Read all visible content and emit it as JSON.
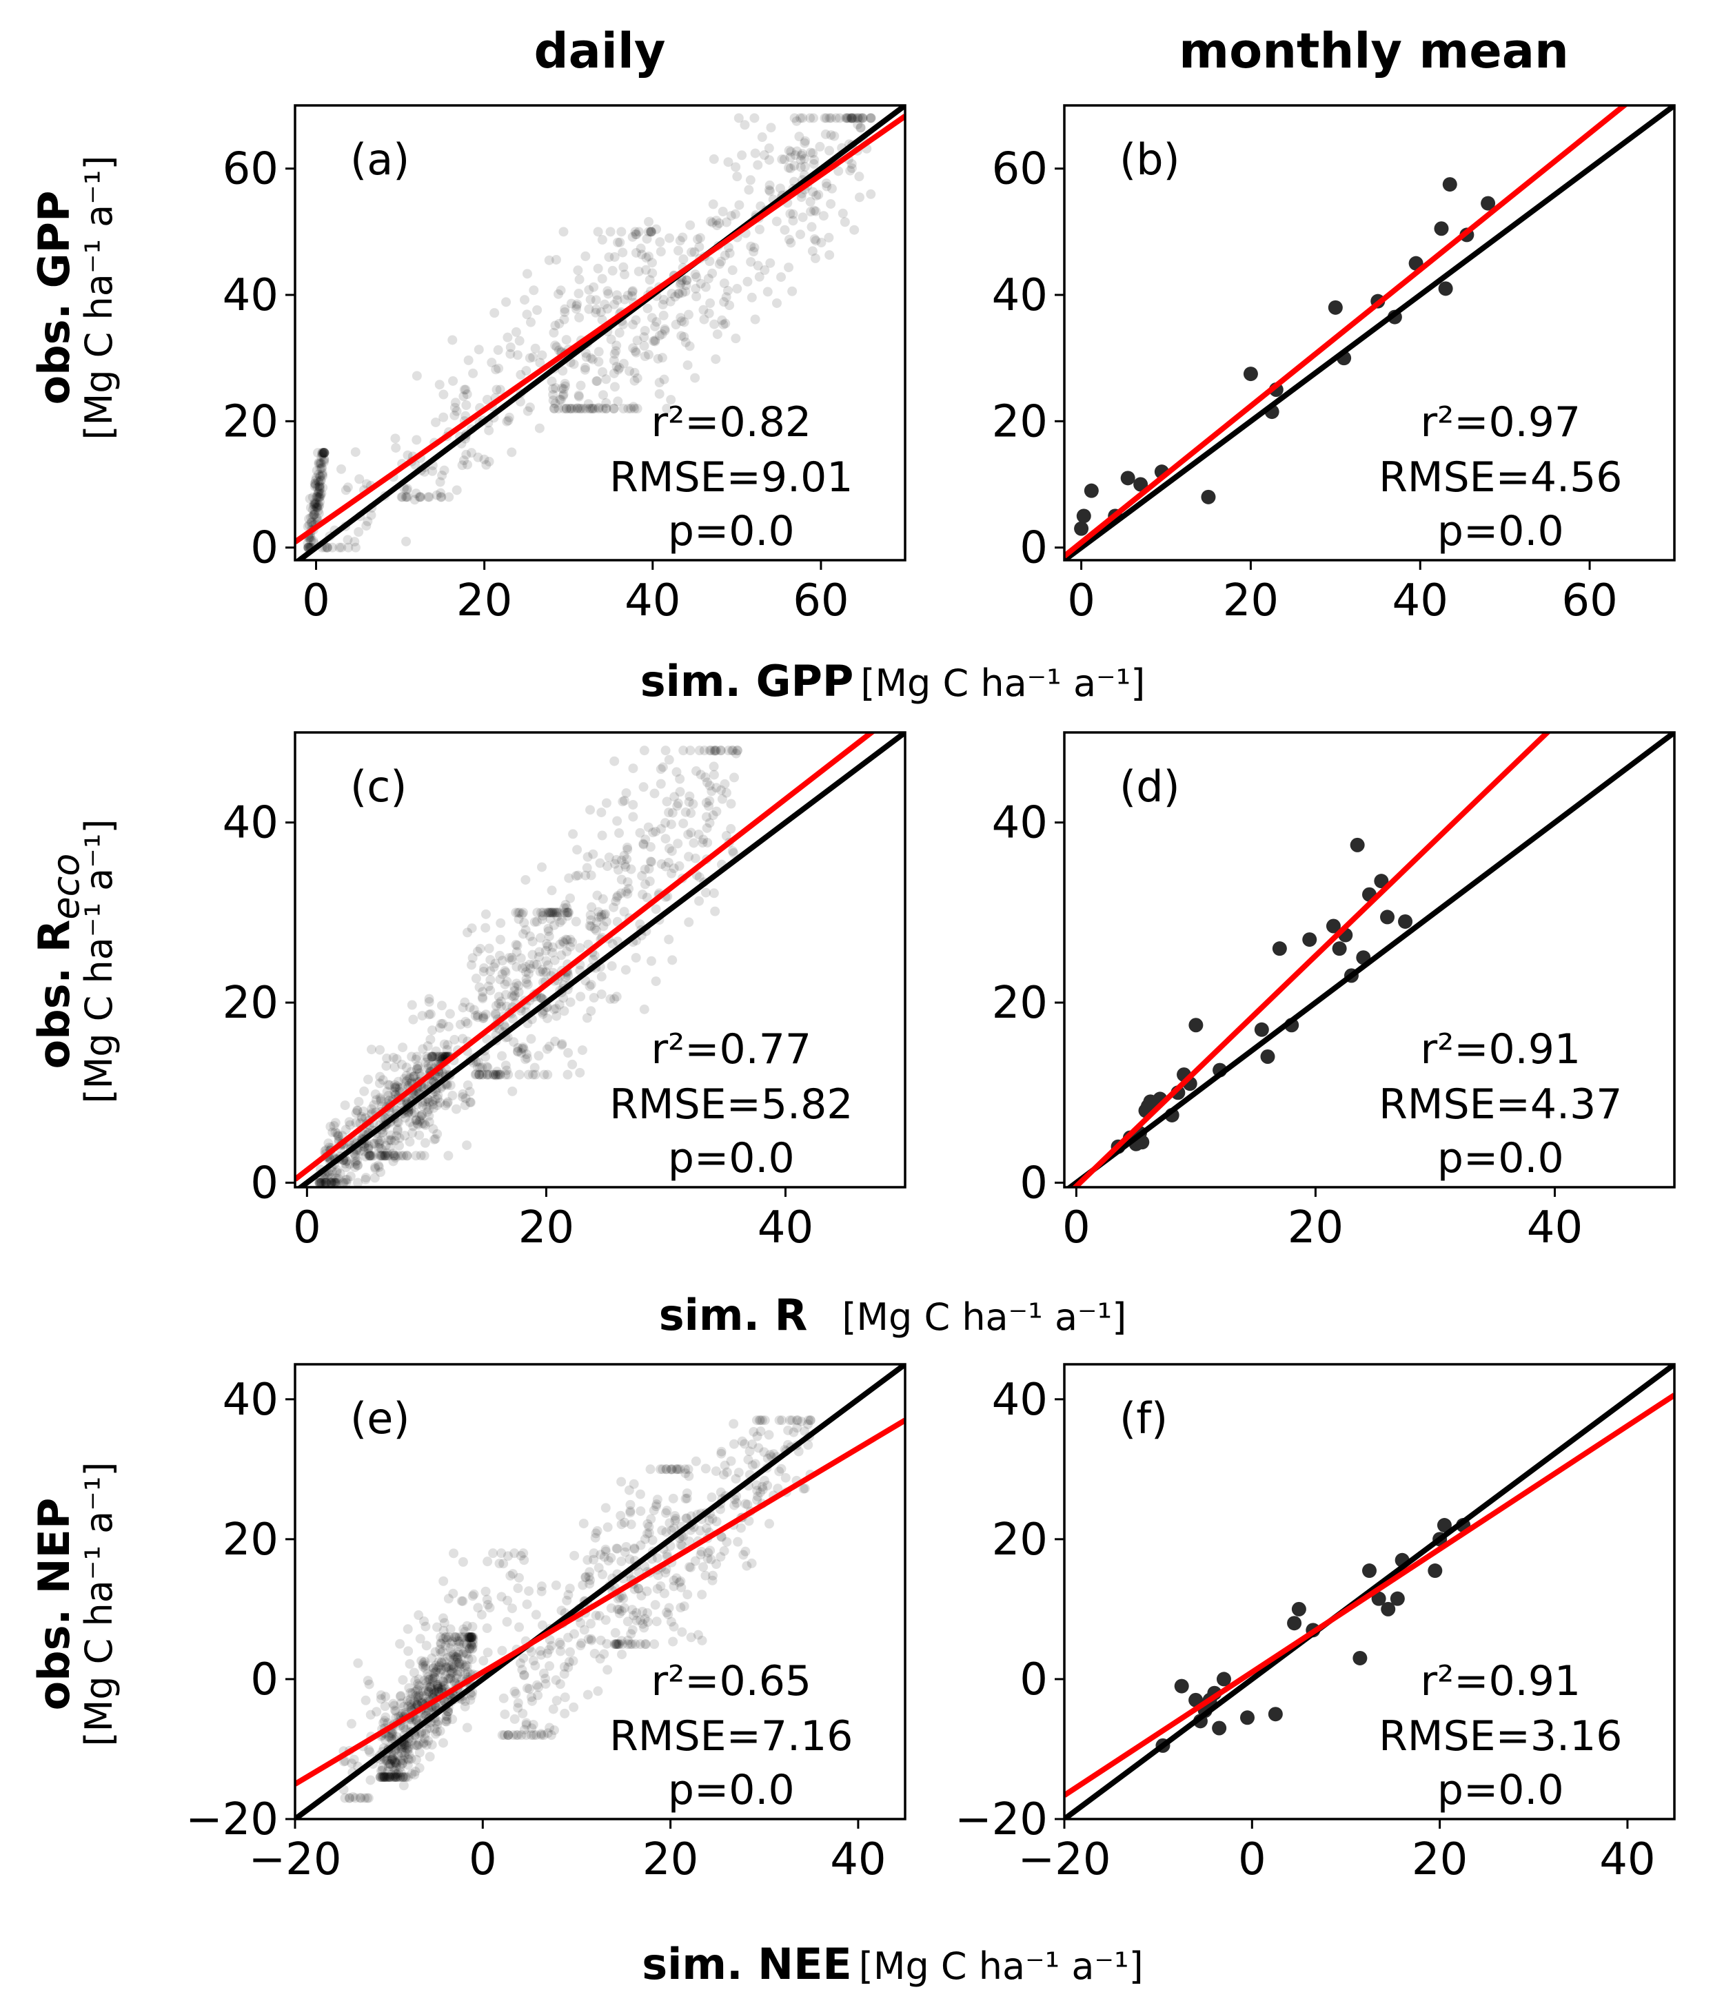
{
  "column_titles": [
    "daily",
    "monthly mean"
  ],
  "row_labels": [
    {
      "ylabel_bold": "obs. GPP",
      "ylabel_unit": "[Mg C ha⁻¹ a⁻¹]",
      "xlabel_bold": "sim. GPP",
      "xlabel_unit": "[Mg C ha⁻¹ a⁻¹]"
    },
    {
      "ylabel_bold": "obs. R",
      "ylabel_sub": "eco",
      "ylabel_unit": "[Mg C ha⁻¹ a⁻¹]",
      "xlabel_bold": "sim. R",
      "xlabel_unit": "[Mg C ha⁻¹ a⁻¹]"
    },
    {
      "ylabel_bold": "obs. NEP",
      "ylabel_unit": "[Mg C ha⁻¹ a⁻¹]",
      "xlabel_bold": "sim. NEE",
      "xlabel_unit": "[Mg C ha⁻¹ a⁻¹]"
    }
  ],
  "colors": {
    "one_to_one": "#000000",
    "regression": "#ff0000",
    "daily_points": "rgba(0,0,0,0.12)",
    "monthly_points": "#2b2b2b"
  },
  "chart_data": [
    {
      "id": "a",
      "type": "scatter",
      "panel_label": "(a)",
      "xlim": [
        -2.5,
        70
      ],
      "ylim": [
        -2,
        70
      ],
      "xticks": [
        0,
        20,
        40,
        60
      ],
      "yticks": [
        0,
        20,
        40,
        60
      ],
      "r2": "r²=0.82",
      "rmse": "RMSE=9.01",
      "p": "p=0.0",
      "fit": {
        "slope": 0.93,
        "intercept": 3.2
      },
      "cloud": [
        {
          "n": 120,
          "x": [
            -1,
            1
          ],
          "y": [
            0,
            15
          ]
        },
        {
          "n": 70,
          "x": [
            0,
            25
          ],
          "y": [
            0,
            25
          ]
        },
        {
          "n": 140,
          "x": [
            10,
            40
          ],
          "y": [
            8,
            50
          ]
        },
        {
          "n": 420,
          "x": [
            28,
            66
          ],
          "y": [
            22,
            68
          ]
        }
      ]
    },
    {
      "id": "b",
      "type": "scatter",
      "panel_label": "(b)",
      "xlim": [
        -2,
        70
      ],
      "ylim": [
        -2,
        70
      ],
      "xticks": [
        0,
        20,
        40,
        60
      ],
      "yticks": [
        0,
        20,
        40,
        60
      ],
      "r2": "r²=0.97",
      "rmse": "RMSE=4.56",
      "p": "p=0.0",
      "fit": {
        "slope": 1.08,
        "intercept": 0.8
      },
      "points": [
        [
          0,
          3
        ],
        [
          0.3,
          5
        ],
        [
          1.2,
          9
        ],
        [
          4,
          5
        ],
        [
          5.5,
          11
        ],
        [
          7,
          10
        ],
        [
          9.5,
          12
        ],
        [
          15,
          8
        ],
        [
          20,
          27.5
        ],
        [
          22.5,
          21.5
        ],
        [
          23,
          25
        ],
        [
          30,
          38
        ],
        [
          31,
          30
        ],
        [
          35,
          39
        ],
        [
          37,
          36.5
        ],
        [
          39.5,
          45
        ],
        [
          42.5,
          50.5
        ],
        [
          43,
          41
        ],
        [
          43.5,
          57.5
        ],
        [
          45.5,
          49.5
        ],
        [
          48,
          54.5
        ]
      ]
    },
    {
      "id": "c",
      "type": "scatter",
      "panel_label": "(c)",
      "xlim": [
        -1,
        50
      ],
      "ylim": [
        -0.5,
        50
      ],
      "xticks": [
        0,
        20,
        40
      ],
      "yticks": [
        0,
        20,
        40
      ],
      "r2": "r²=0.77",
      "rmse": "RMSE=5.82",
      "p": "p=0.0",
      "fit": {
        "slope": 1.03,
        "intercept": 1.4
      },
      "cloud": [
        {
          "n": 380,
          "x": [
            1,
            12
          ],
          "y": [
            0,
            14
          ]
        },
        {
          "n": 300,
          "x": [
            5,
            22
          ],
          "y": [
            3,
            30
          ]
        },
        {
          "n": 380,
          "x": [
            14,
            36
          ],
          "y": [
            12,
            48
          ]
        }
      ]
    },
    {
      "id": "d",
      "type": "scatter",
      "panel_label": "(d)",
      "xlim": [
        -1,
        50
      ],
      "ylim": [
        -0.5,
        50
      ],
      "xticks": [
        0,
        20,
        40
      ],
      "yticks": [
        0,
        20,
        40
      ],
      "r2": "r²=0.91",
      "rmse": "RMSE=4.37",
      "p": "p=0.0",
      "fit": {
        "slope": 1.28,
        "intercept": -0.4
      },
      "points": [
        [
          3.5,
          4
        ],
        [
          4.5,
          5
        ],
        [
          5,
          4.3
        ],
        [
          5.3,
          5.5
        ],
        [
          5.5,
          4.5
        ],
        [
          5.8,
          8
        ],
        [
          6,
          8.5
        ],
        [
          6.2,
          9
        ],
        [
          7,
          9.3
        ],
        [
          8,
          7.5
        ],
        [
          8.5,
          10
        ],
        [
          9,
          12
        ],
        [
          9.5,
          11
        ],
        [
          10,
          17.5
        ],
        [
          12,
          12.5
        ],
        [
          15.5,
          17
        ],
        [
          16,
          14
        ],
        [
          17,
          26
        ],
        [
          18,
          17.5
        ],
        [
          19.5,
          27
        ],
        [
          21.5,
          28.5
        ],
        [
          22,
          26
        ],
        [
          22.5,
          27.5
        ],
        [
          23,
          23
        ],
        [
          23.5,
          37.5
        ],
        [
          24,
          25
        ],
        [
          24.5,
          32
        ],
        [
          25.5,
          33.5
        ],
        [
          26,
          29.5
        ],
        [
          27.5,
          29
        ]
      ]
    },
    {
      "id": "e",
      "type": "scatter",
      "panel_label": "(e)",
      "xlim": [
        -20,
        45
      ],
      "ylim": [
        -20,
        45
      ],
      "xticks": [
        -20,
        0,
        20,
        40
      ],
      "yticks": [
        -20,
        0,
        20,
        40
      ],
      "r2": "r²=0.65",
      "rmse": "RMSE=7.16",
      "p": "p=0.0",
      "fit": {
        "slope": 0.8,
        "intercept": 1.0
      },
      "cloud": [
        {
          "n": 480,
          "x": [
            -11,
            -1
          ],
          "y": [
            -14,
            6
          ]
        },
        {
          "n": 140,
          "x": [
            -15,
            5
          ],
          "y": [
            -17,
            18
          ]
        },
        {
          "n": 220,
          "x": [
            2,
            22
          ],
          "y": [
            -8,
            30
          ]
        },
        {
          "n": 240,
          "x": [
            14,
            35
          ],
          "y": [
            5,
            37
          ]
        }
      ]
    },
    {
      "id": "f",
      "type": "scatter",
      "panel_label": "(f)",
      "xlim": [
        -20,
        45
      ],
      "ylim": [
        -20,
        45
      ],
      "xticks": [
        -20,
        0,
        20,
        40
      ],
      "yticks": [
        -20,
        0,
        20,
        40
      ],
      "r2": "r²=0.91",
      "rmse": "RMSE=3.16",
      "p": "p=0.0",
      "fit": {
        "slope": 0.88,
        "intercept": 1.0
      },
      "points": [
        [
          -9.5,
          -9.5
        ],
        [
          -7.5,
          -1
        ],
        [
          -6,
          -3
        ],
        [
          -5.5,
          -6
        ],
        [
          -5,
          -4.5
        ],
        [
          -4.5,
          -3
        ],
        [
          -4,
          -2
        ],
        [
          -3.5,
          -7
        ],
        [
          -3,
          0
        ],
        [
          -0.5,
          -5.5
        ],
        [
          2.5,
          -5
        ],
        [
          4.5,
          8
        ],
        [
          5,
          10
        ],
        [
          6.5,
          7
        ],
        [
          11.5,
          3
        ],
        [
          12.5,
          15.5
        ],
        [
          13.5,
          11.5
        ],
        [
          14.5,
          10
        ],
        [
          15.5,
          11.5
        ],
        [
          16,
          17
        ],
        [
          19.5,
          15.5
        ],
        [
          20,
          20
        ],
        [
          20.5,
          22
        ],
        [
          22.5,
          22
        ]
      ]
    }
  ]
}
